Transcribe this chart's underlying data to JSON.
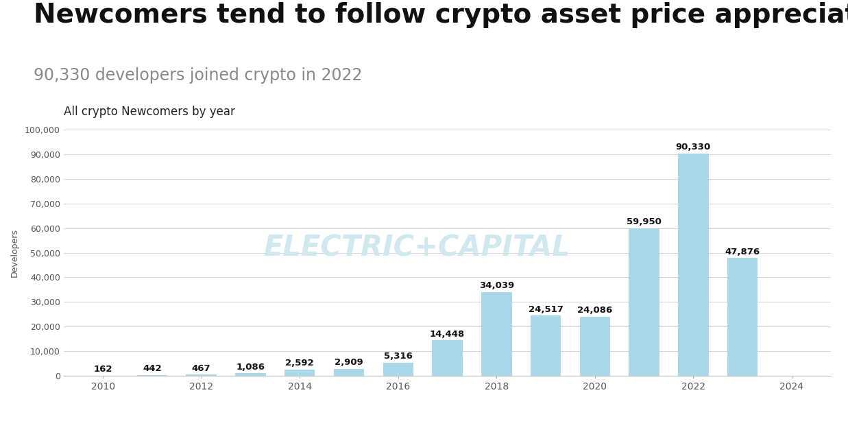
{
  "title": "Newcomers tend to follow crypto asset price appreciation",
  "subtitle": "90,330 developers joined crypto in 2022",
  "chart_label": "All crypto Newcomers by year",
  "ylabel": "Developers",
  "years": [
    2010,
    2011,
    2012,
    2013,
    2014,
    2015,
    2016,
    2017,
    2018,
    2019,
    2020,
    2021,
    2022,
    2023
  ],
  "values": [
    162,
    442,
    467,
    1086,
    2592,
    2909,
    5316,
    14448,
    34039,
    24517,
    24086,
    59950,
    90330,
    47876
  ],
  "bar_color": "#a8d8ea",
  "bar_labels": [
    "162",
    "442",
    "467",
    "1,086",
    "2,592",
    "2,909",
    "5,316",
    "14,448",
    "34,039",
    "24,517",
    "24,086",
    "59,950",
    "90,330",
    "47,876"
  ],
  "watermark": "ELECTRIC+CAPITAL",
  "background_color": "#ffffff",
  "title_fontsize": 28,
  "subtitle_fontsize": 17,
  "chart_label_fontsize": 12,
  "bar_label_fontsize": 9.5,
  "ylabel_fontsize": 9,
  "ylim": [
    0,
    100000
  ],
  "yticks": [
    0,
    10000,
    20000,
    30000,
    40000,
    50000,
    60000,
    70000,
    80000,
    90000,
    100000
  ],
  "xlim": [
    2009.2,
    2024.8
  ],
  "xticks": [
    2010,
    2012,
    2014,
    2016,
    2018,
    2020,
    2022,
    2024
  ]
}
